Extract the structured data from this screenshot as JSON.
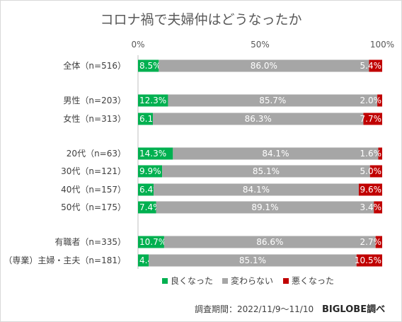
{
  "chart_data": {
    "type": "bar",
    "orientation": "horizontal",
    "stacked": "100%",
    "title": "コロナ禍で夫婦仲はどうなったか",
    "x_ticks": [
      "0%",
      "50%",
      "100%"
    ],
    "xlim": [
      0,
      100
    ],
    "categories": [
      "全体（n=516）",
      "男性（n=203）",
      "女性（n=313）",
      "20代（n=63）",
      "30代（n=121）",
      "40代（n=157）",
      "50代（n=175）",
      "有職者（n=335）",
      "（専業）主婦・主夫（n=181）"
    ],
    "series": [
      {
        "name": "良くなった",
        "color": "#00b050",
        "values": [
          8.5,
          12.3,
          6.1,
          14.3,
          9.9,
          6.4,
          7.4,
          10.7,
          4.4
        ]
      },
      {
        "name": "変わらない",
        "color": "#a6a6a6",
        "values": [
          86.0,
          85.7,
          86.3,
          84.1,
          85.1,
          84.1,
          89.1,
          86.6,
          85.1
        ]
      },
      {
        "name": "悪くなった",
        "color": "#c00000",
        "values": [
          5.4,
          2.0,
          7.7,
          1.6,
          5.0,
          9.6,
          3.4,
          2.7,
          10.5
        ]
      }
    ],
    "grid": false,
    "legend": "bottom"
  },
  "footer": {
    "survey_period": "調査期間：2022/11/9〜11/10",
    "credit": "BIGLOBE調べ"
  }
}
